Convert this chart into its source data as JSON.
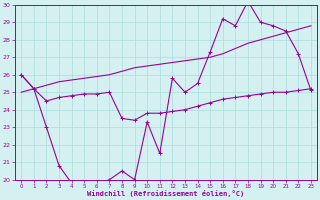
{
  "x": [
    0,
    1,
    2,
    3,
    4,
    5,
    6,
    7,
    8,
    9,
    10,
    11,
    12,
    13,
    14,
    15,
    16,
    17,
    18,
    19,
    20,
    21,
    22,
    23
  ],
  "line_trend": [
    25.0,
    25.2,
    25.4,
    25.6,
    25.7,
    25.8,
    25.9,
    26.0,
    26.2,
    26.4,
    26.5,
    26.6,
    26.7,
    26.8,
    26.9,
    27.0,
    27.2,
    27.5,
    27.8,
    28.0,
    28.2,
    28.4,
    28.6,
    28.8
  ],
  "line_mid": [
    26.0,
    25.2,
    24.5,
    24.7,
    24.8,
    24.9,
    24.9,
    25.0,
    23.5,
    23.4,
    23.8,
    23.8,
    23.9,
    24.0,
    24.2,
    24.4,
    24.6,
    24.7,
    24.8,
    24.9,
    25.0,
    25.0,
    25.1,
    25.2
  ],
  "line_spiky": [
    26.0,
    25.2,
    23.0,
    20.8,
    19.8,
    19.7,
    19.7,
    20.0,
    20.5,
    20.0,
    23.3,
    21.5,
    25.8,
    25.0,
    25.5,
    27.3,
    29.2,
    28.8,
    30.2,
    29.0,
    28.8,
    28.5,
    27.2,
    25.1
  ],
  "color": "#990099",
  "bg_color": "#d4f0f0",
  "grid_color": "#aadddd",
  "xlabel": "Windchill (Refroidissement éolien,°C)",
  "ylim": [
    20,
    30
  ],
  "xlim": [
    0,
    23
  ],
  "yticks": [
    20,
    21,
    22,
    23,
    24,
    25,
    26,
    27,
    28,
    29,
    30
  ]
}
